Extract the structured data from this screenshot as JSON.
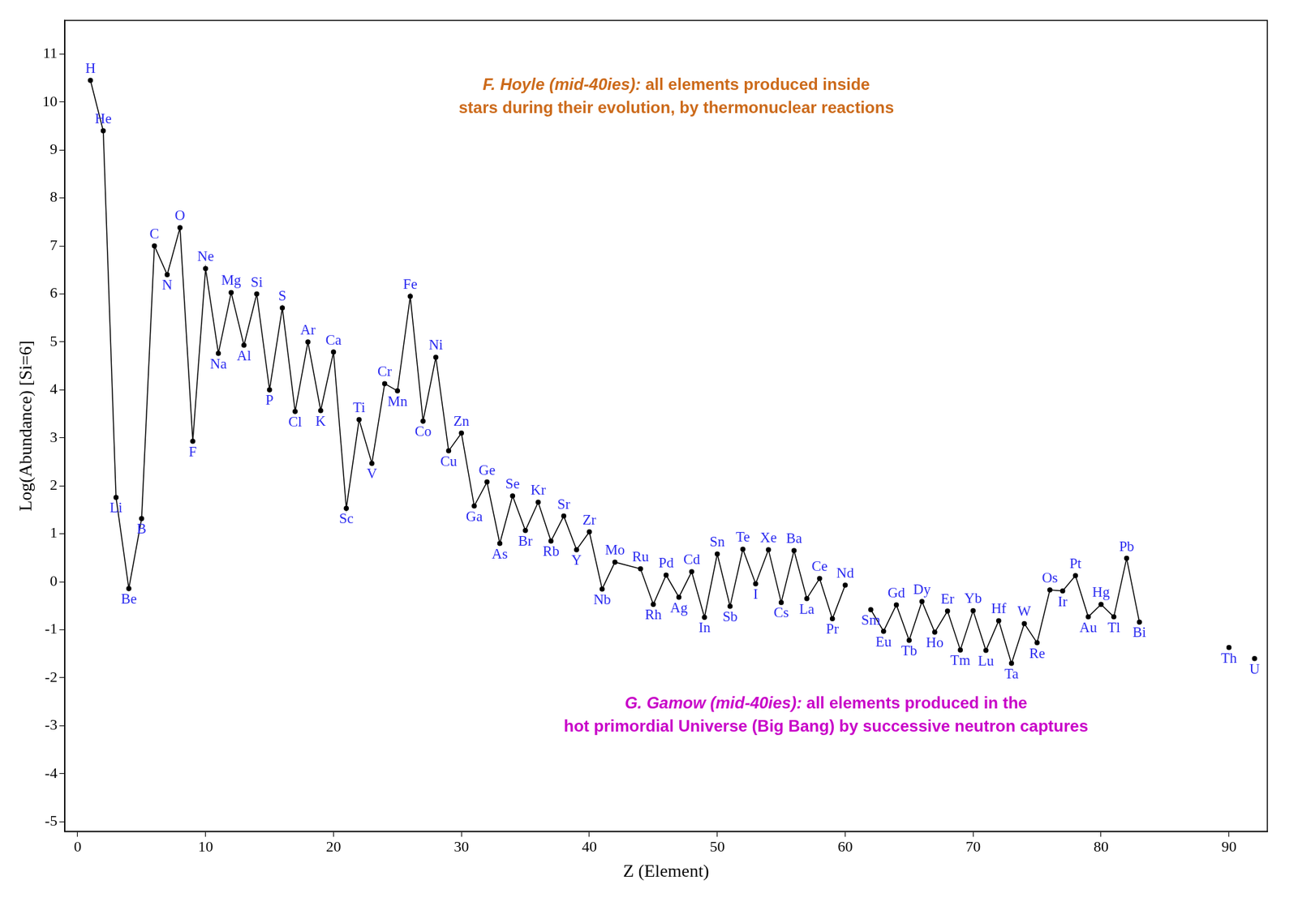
{
  "chart_data": {
    "type": "line",
    "x_label": "Z (Element)",
    "y_label": "Log(Abundance) [Si=6]",
    "x": [
      1,
      2,
      3,
      4,
      5,
      6,
      7,
      8,
      9,
      10,
      11,
      12,
      13,
      14,
      15,
      16,
      17,
      18,
      19,
      20,
      21,
      22,
      23,
      24,
      25,
      26,
      27,
      28,
      29,
      30,
      31,
      32,
      33,
      34,
      35,
      36,
      37,
      38,
      39,
      40,
      41,
      42,
      44,
      45,
      46,
      47,
      48,
      49,
      50,
      51,
      52,
      53,
      54,
      55,
      56,
      57,
      58,
      59,
      60,
      61,
      62,
      63,
      64,
      65,
      66,
      67,
      68,
      69,
      70,
      71,
      72,
      73,
      74,
      75,
      76,
      77,
      78,
      79,
      80,
      81,
      82,
      83,
      84,
      85,
      86,
      87,
      88,
      89,
      90,
      91,
      92
    ],
    "values": [
      10.45,
      9.4,
      1.76,
      -0.14,
      1.32,
      7.0,
      6.4,
      7.38,
      2.93,
      6.53,
      4.76,
      6.03,
      4.93,
      6.0,
      4.0,
      5.71,
      3.55,
      5.0,
      3.57,
      4.79,
      1.53,
      3.38,
      2.47,
      4.13,
      3.98,
      5.95,
      3.35,
      4.68,
      2.73,
      3.1,
      1.58,
      2.08,
      0.8,
      1.79,
      1.07,
      1.66,
      0.85,
      1.37,
      0.67,
      1.04,
      -0.15,
      0.41,
      0.27,
      -0.47,
      0.14,
      -0.32,
      0.21,
      -0.74,
      0.58,
      -0.51,
      0.68,
      -0.04,
      0.67,
      -0.43,
      0.65,
      -0.35,
      0.07,
      -0.77,
      -0.07,
      null,
      -0.58,
      -1.03,
      -0.48,
      -1.22,
      -0.41,
      -1.05,
      -0.61,
      -1.42,
      -0.6,
      -1.43,
      -0.81,
      -1.7,
      -0.87,
      -1.27,
      -0.17,
      -0.19,
      0.13,
      -0.73,
      -0.47,
      -0.73,
      0.49,
      -0.84,
      null,
      null,
      null,
      null,
      null,
      null,
      -1.37,
      null,
      -1.6
    ],
    "point_labels": [
      "H",
      "He",
      "Li",
      "Be",
      "B",
      "C",
      "N",
      "O",
      "F",
      "Ne",
      "Na",
      "Mg",
      "Al",
      "Si",
      "P",
      "S",
      "Cl",
      "Ar",
      "K",
      "Ca",
      "Sc",
      "Ti",
      "V",
      "Cr",
      "Mn",
      "Fe",
      "Co",
      "Ni",
      "Cu",
      "Zn",
      "Ga",
      "Ge",
      "As",
      "Se",
      "Br",
      "Kr",
      "Rb",
      "Sr",
      "Y",
      "Zr",
      "Nb",
      "Mo",
      "Ru",
      "Rh",
      "Pd",
      "Ag",
      "Cd",
      "In",
      "Sn",
      "Sb",
      "Te",
      "I",
      "Xe",
      "Cs",
      "Ba",
      "La",
      "Ce",
      "Pr",
      "Nd",
      null,
      "Sm",
      "Eu",
      "Gd",
      "Tb",
      "Dy",
      "Ho",
      "Er",
      "Tm",
      "Yb",
      "Lu",
      "Hf",
      "Ta",
      "W",
      "Re",
      "Os",
      "Ir",
      "Pt",
      "Au",
      "Hg",
      "Tl",
      "Pb",
      "Bi",
      null,
      null,
      null,
      null,
      null,
      null,
      "Th",
      null,
      "U"
    ],
    "color": "#000000",
    "label_color": "#2a2af0",
    "marker": "circle",
    "line_style": "solid",
    "xlim": [
      -1,
      93
    ],
    "xticks": [
      0,
      10,
      20,
      30,
      40,
      50,
      60,
      70,
      80,
      90
    ],
    "ylim": [
      -5.2,
      11.7
    ],
    "yticks": [
      -5,
      -4,
      -3,
      -2,
      -1,
      0,
      1,
      2,
      3,
      4,
      5,
      6,
      7,
      8,
      9,
      10,
      11
    ],
    "grid": false,
    "legend": "none",
    "annotations": [
      {
        "author": "F. Hoyle (mid-40ies):",
        "lines": [
          "all elements produced inside",
          "stars during their evolution, by thermonuclear reactions"
        ],
        "color": "#cc6a1a"
      },
      {
        "author": "G. Gamow (mid-40ies):",
        "lines": [
          "all elements produced in the",
          "hot primordial Universe (Big Bang) by successive neutron captures"
        ],
        "color": "#c800c8"
      }
    ]
  }
}
